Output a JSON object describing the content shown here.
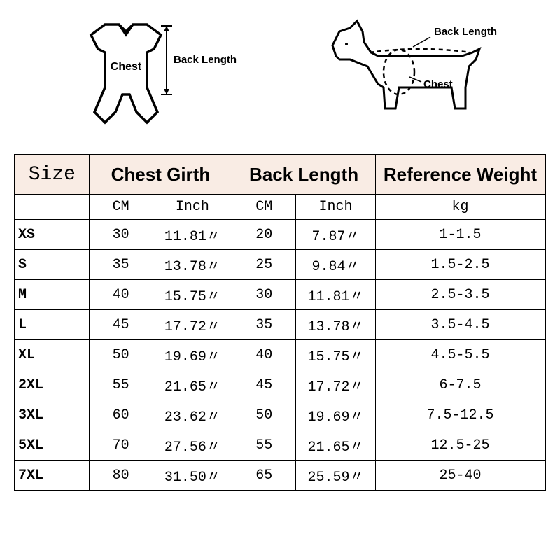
{
  "diagrams": {
    "left": {
      "chest_label": "Chest",
      "back_label": "Back Length"
    },
    "right": {
      "chest_label": "Chest",
      "back_label": "Back Length"
    }
  },
  "table": {
    "header_bg": "#f9ece4",
    "border_color": "#000000",
    "columns": {
      "size": "Size",
      "chest": "Chest Girth",
      "back": "Back Length",
      "weight": "Reference Weight"
    },
    "subheaders": {
      "cm": "CM",
      "inch": "Inch",
      "kg": "kg"
    },
    "rows": [
      {
        "size": "XS",
        "chest_cm": "30",
        "chest_in": "11.81〃",
        "back_cm": "20",
        "back_in": "7.87〃",
        "weight": "1-1.5"
      },
      {
        "size": "S",
        "chest_cm": "35",
        "chest_in": "13.78〃",
        "back_cm": "25",
        "back_in": "9.84〃",
        "weight": "1.5-2.5"
      },
      {
        "size": "M",
        "chest_cm": "40",
        "chest_in": "15.75〃",
        "back_cm": "30",
        "back_in": "11.81〃",
        "weight": "2.5-3.5"
      },
      {
        "size": "L",
        "chest_cm": "45",
        "chest_in": "17.72〃",
        "back_cm": "35",
        "back_in": "13.78〃",
        "weight": "3.5-4.5"
      },
      {
        "size": "XL",
        "chest_cm": "50",
        "chest_in": "19.69〃",
        "back_cm": "40",
        "back_in": "15.75〃",
        "weight": "4.5-5.5"
      },
      {
        "size": "2XL",
        "chest_cm": "55",
        "chest_in": "21.65〃",
        "back_cm": "45",
        "back_in": "17.72〃",
        "weight": "6-7.5"
      },
      {
        "size": "3XL",
        "chest_cm": "60",
        "chest_in": "23.62〃",
        "back_cm": "50",
        "back_in": "19.69〃",
        "weight": "7.5-12.5"
      },
      {
        "size": "5XL",
        "chest_cm": "70",
        "chest_in": "27.56〃",
        "back_cm": "55",
        "back_in": "21.65〃",
        "weight": "12.5-25"
      },
      {
        "size": "7XL",
        "chest_cm": "80",
        "chest_in": "31.50〃",
        "back_cm": "65",
        "back_in": "25.59〃",
        "weight": "25-40"
      }
    ]
  }
}
